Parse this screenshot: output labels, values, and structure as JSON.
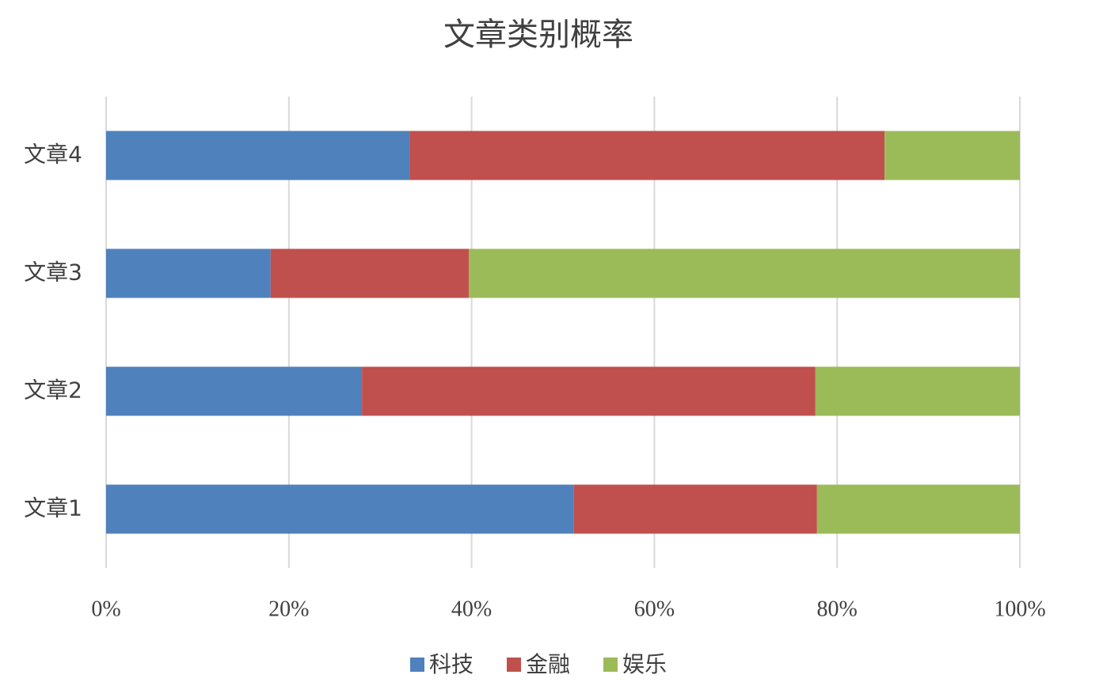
{
  "chart_data": {
    "type": "bar",
    "orientation": "horizontal",
    "stacked": true,
    "title": "文章类别概率",
    "categories": [
      "文章1",
      "文章2",
      "文章3",
      "文章4"
    ],
    "series": [
      {
        "name": "科技",
        "color": "#4f81bd",
        "values": [
          51.2,
          28.0,
          18.0,
          33.2
        ]
      },
      {
        "name": "金融",
        "color": "#c0504d",
        "values": [
          26.6,
          49.6,
          21.7,
          52.0
        ]
      },
      {
        "name": "娱乐",
        "color": "#9bbb59",
        "values": [
          22.2,
          22.4,
          60.3,
          14.8
        ]
      }
    ],
    "xlim": [
      0,
      100
    ],
    "xticks": [
      {
        "value": 0,
        "label": "0%"
      },
      {
        "value": 20,
        "label": "20%"
      },
      {
        "value": 40,
        "label": "40%"
      },
      {
        "value": 60,
        "label": "60%"
      },
      {
        "value": 80,
        "label": "80%"
      },
      {
        "value": 100,
        "label": "100%"
      }
    ],
    "grid": true,
    "legend": "bottom"
  }
}
